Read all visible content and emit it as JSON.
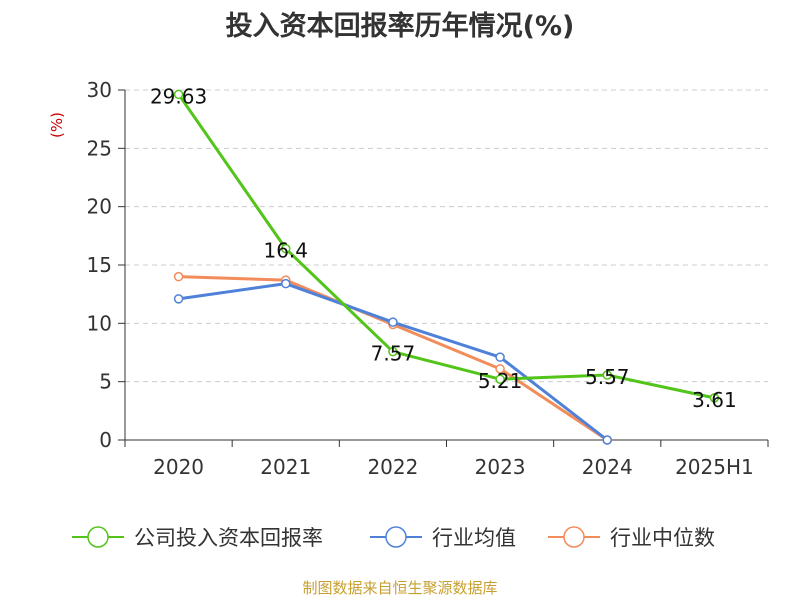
{
  "chart_data": {
    "type": "line",
    "title": "投入资本回报率历年情况(%)",
    "ylabel": "(%)",
    "xlabel": "",
    "categories": [
      "2020",
      "2021",
      "2022",
      "2023",
      "2024",
      "2025H1"
    ],
    "ylim": [
      0,
      30
    ],
    "yticks": [
      0,
      5,
      10,
      15,
      20,
      25,
      30
    ],
    "grid": true,
    "legend_position": "bottom",
    "series": [
      {
        "name": "公司投入资本回报率",
        "color": "#52c41a",
        "values": [
          29.63,
          16.4,
          7.57,
          5.21,
          5.57,
          3.61
        ],
        "labels": [
          "29.63",
          "16.4",
          "7.57",
          "5.21",
          "5.57",
          "3.61"
        ]
      },
      {
        "name": "行业均值",
        "color": "#4f81d8",
        "values": [
          12.1,
          13.4,
          10.1,
          7.1,
          0.0,
          null
        ]
      },
      {
        "name": "行业中位数",
        "color": "#f28c5a",
        "values": [
          14.0,
          13.7,
          9.9,
          6.1,
          0.0,
          null
        ]
      }
    ]
  },
  "footer": "制图数据来自恒生聚源数据库"
}
